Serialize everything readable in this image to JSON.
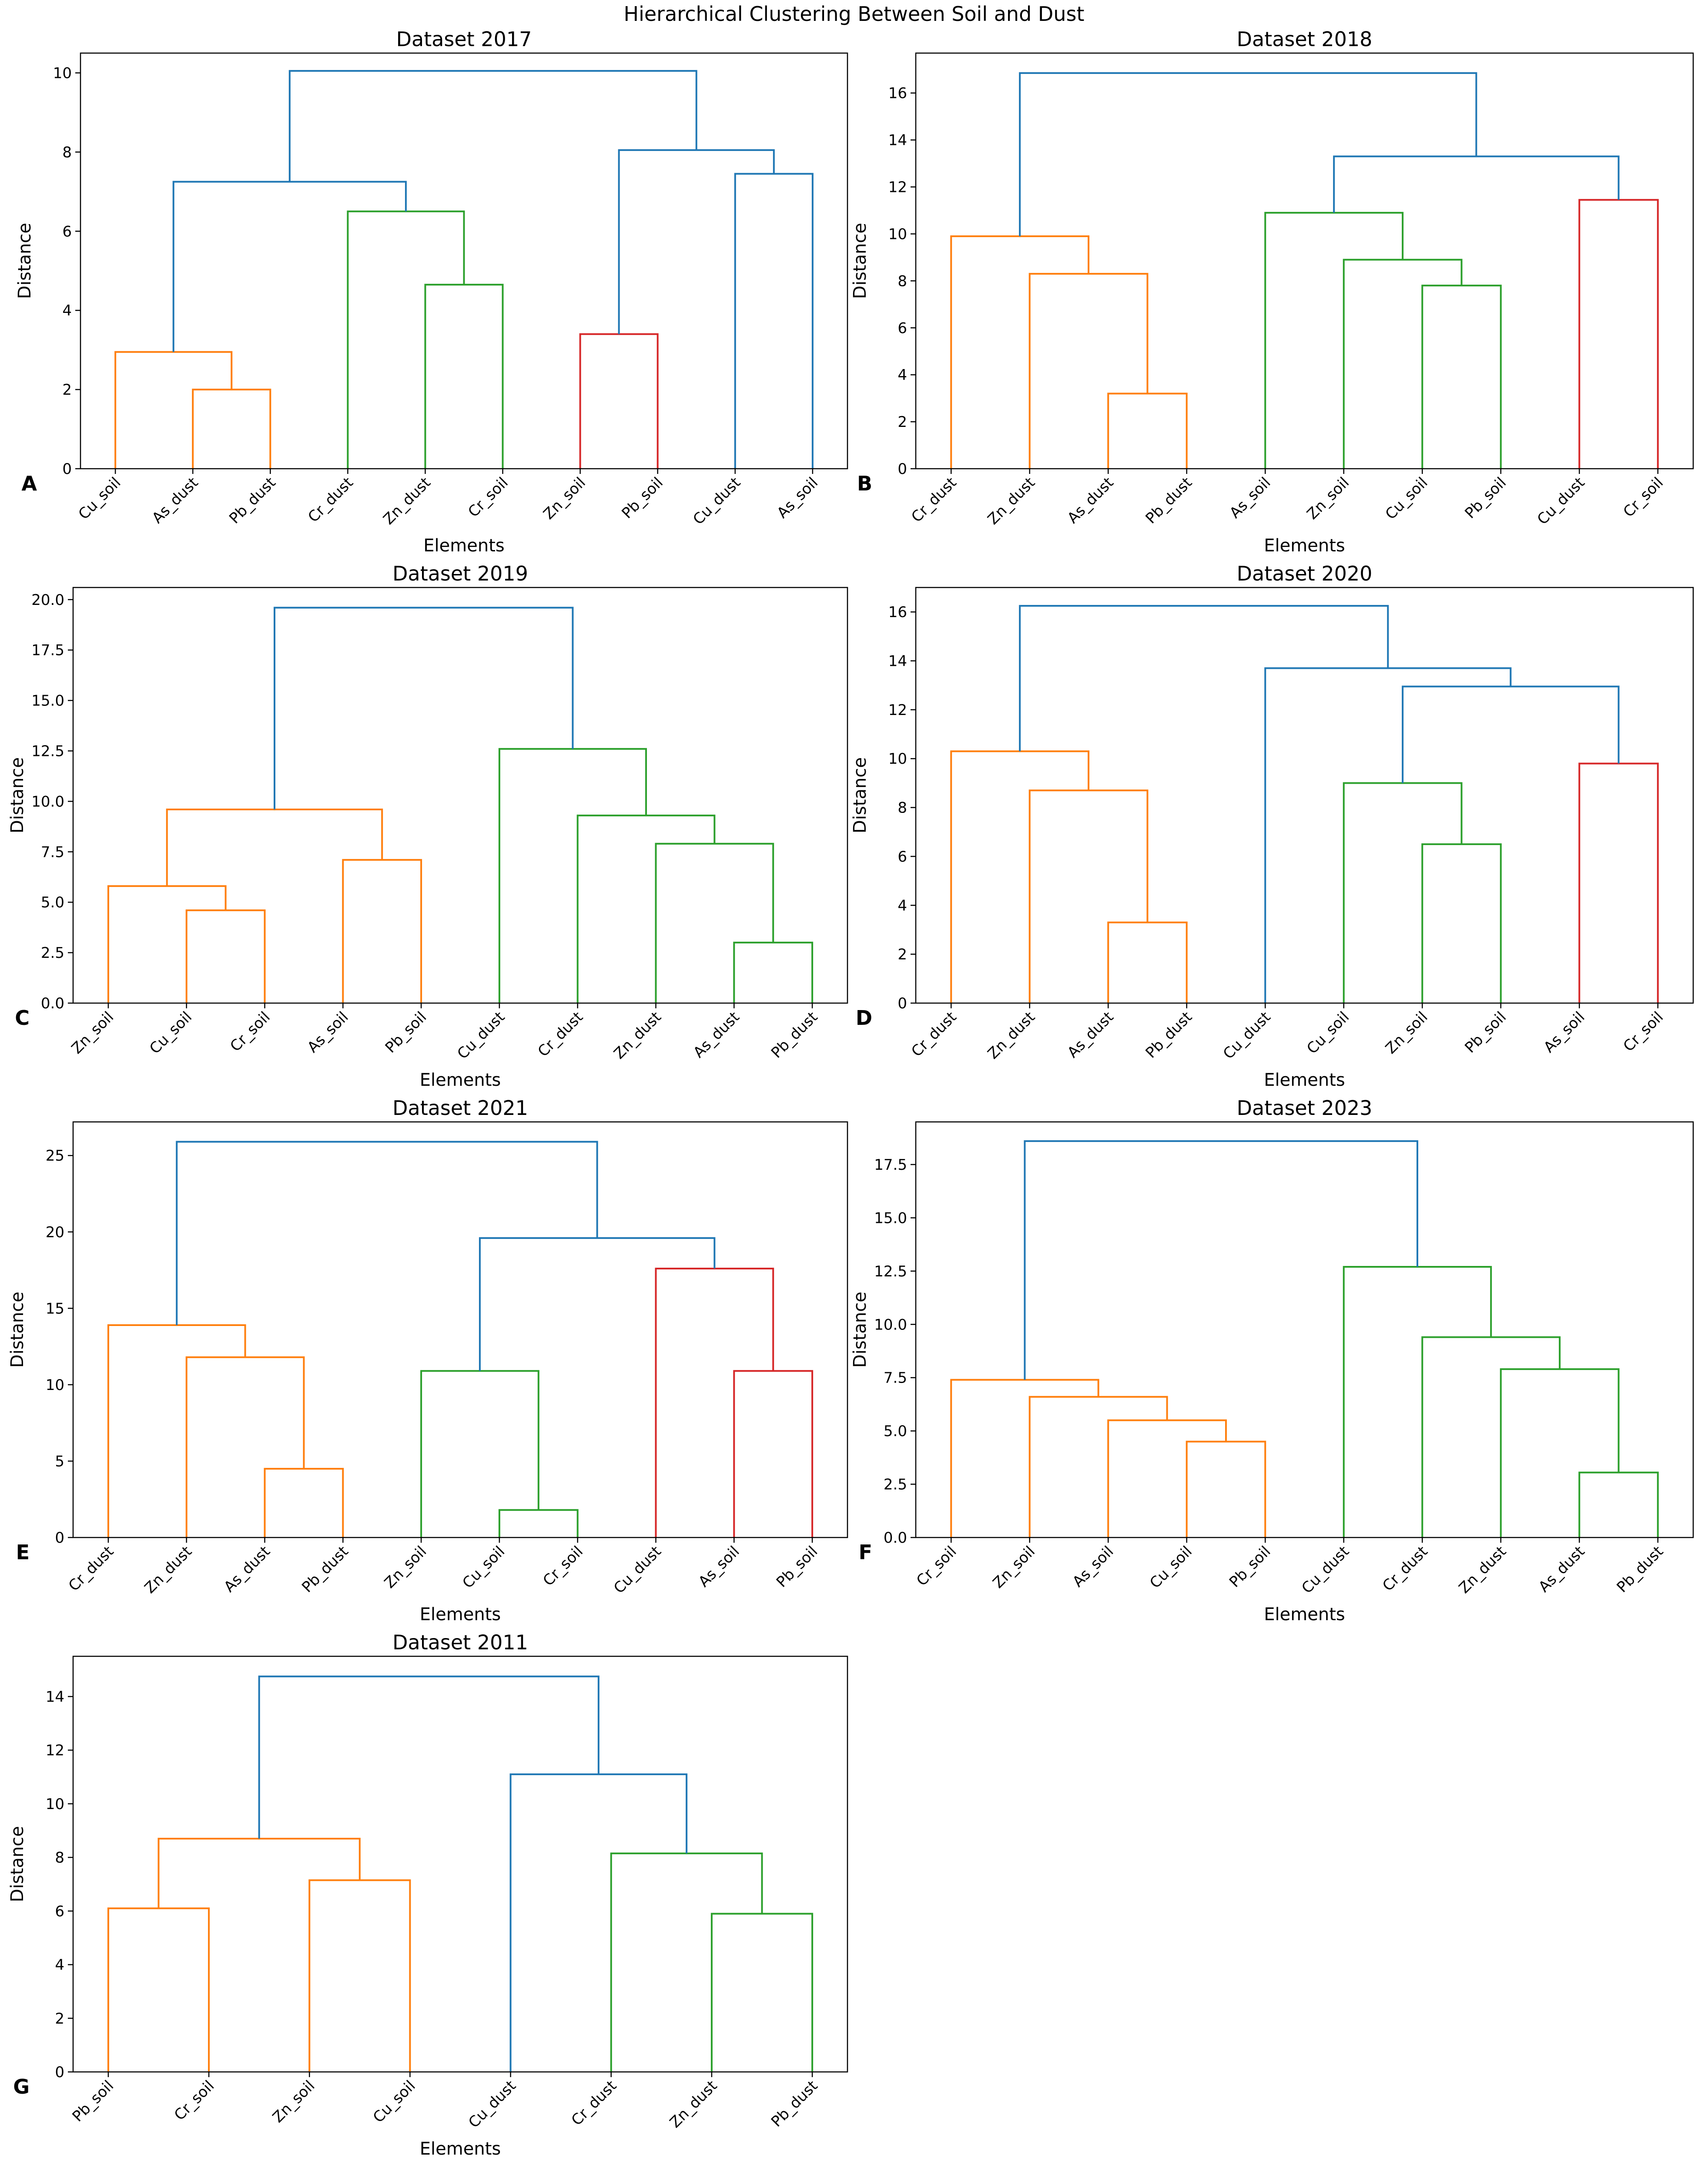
{
  "figure_title": "Hierarchical Clustering Between Soil and Dust",
  "colors": {
    "above_threshold": "#1f77b4",
    "cluster_1": "#ff7f0e",
    "cluster_2": "#2ca02c",
    "cluster_3": "#d62728",
    "axis": "#000000",
    "background": "#ffffff"
  },
  "chart_data": [
    {
      "type": "dendrogram",
      "panel_label": "A",
      "title": "Dataset 2017",
      "xlabel": "Elements",
      "ylabel": "Distance",
      "ylim": [
        0,
        10.5
      ],
      "yticks": [
        0,
        2,
        4,
        6,
        8,
        10
      ],
      "ytick_labels": [
        "0",
        "2",
        "4",
        "6",
        "8",
        "10"
      ],
      "leaves": [
        "Cu_soil",
        "As_dust",
        "Pb_dust",
        "Cr_dust",
        "Zn_dust",
        "Cr_soil",
        "Zn_soil",
        "Pb_soil",
        "Cu_dust",
        "As_soil"
      ],
      "links": [
        {
          "left": "L1",
          "right": "L2",
          "height": 2.0,
          "color": "cluster_1"
        },
        {
          "left": "L0",
          "right": "N0",
          "height": 2.95,
          "color": "cluster_1"
        },
        {
          "left": "L4",
          "right": "L5",
          "height": 4.65,
          "color": "cluster_2"
        },
        {
          "left": "L3",
          "right": "N2",
          "height": 6.5,
          "color": "cluster_2"
        },
        {
          "left": "N1",
          "right": "N3",
          "height": 7.25,
          "color": "above_threshold"
        },
        {
          "left": "L6",
          "right": "L7",
          "height": 3.4,
          "color": "cluster_3"
        },
        {
          "left": "L8",
          "right": "L9",
          "height": 7.45,
          "color": "above_threshold"
        },
        {
          "left": "N5",
          "right": "N6",
          "height": 8.05,
          "color": "above_threshold"
        },
        {
          "left": "N4",
          "right": "N7",
          "height": 10.05,
          "color": "above_threshold"
        }
      ]
    },
    {
      "type": "dendrogram",
      "panel_label": "B",
      "title": "Dataset 2018",
      "xlabel": "Elements",
      "ylabel": "Distance",
      "ylim": [
        0,
        17.7
      ],
      "yticks": [
        0,
        2,
        4,
        6,
        8,
        10,
        12,
        14,
        16
      ],
      "ytick_labels": [
        "0",
        "2",
        "4",
        "6",
        "8",
        "10",
        "12",
        "14",
        "16"
      ],
      "leaves": [
        "Cr_dust",
        "Zn_dust",
        "As_dust",
        "Pb_dust",
        "As_soil",
        "Zn_soil",
        "Cu_soil",
        "Pb_soil",
        "Cu_dust",
        "Cr_soil"
      ],
      "links": [
        {
          "left": "L2",
          "right": "L3",
          "height": 3.2,
          "color": "cluster_1"
        },
        {
          "left": "L1",
          "right": "N0",
          "height": 8.3,
          "color": "cluster_1"
        },
        {
          "left": "L0",
          "right": "N1",
          "height": 9.9,
          "color": "cluster_1"
        },
        {
          "left": "L6",
          "right": "L7",
          "height": 7.8,
          "color": "cluster_2"
        },
        {
          "left": "L5",
          "right": "N3",
          "height": 8.9,
          "color": "cluster_2"
        },
        {
          "left": "L4",
          "right": "N4",
          "height": 10.9,
          "color": "cluster_2"
        },
        {
          "left": "L8",
          "right": "L9",
          "height": 11.45,
          "color": "cluster_3"
        },
        {
          "left": "N5",
          "right": "N6",
          "height": 13.3,
          "color": "above_threshold"
        },
        {
          "left": "N2",
          "right": "N7",
          "height": 16.85,
          "color": "above_threshold"
        }
      ]
    },
    {
      "type": "dendrogram",
      "panel_label": "C",
      "title": "Dataset 2019",
      "xlabel": "Elements",
      "ylabel": "Distance",
      "ylim": [
        0,
        20.6
      ],
      "yticks": [
        0,
        2.5,
        5,
        7.5,
        10,
        12.5,
        15,
        17.5,
        20
      ],
      "ytick_labels": [
        "0.0",
        "2.5",
        "5.0",
        "7.5",
        "10.0",
        "12.5",
        "15.0",
        "17.5",
        "20.0"
      ],
      "leaves": [
        "Zn_soil",
        "Cu_soil",
        "Cr_soil",
        "As_soil",
        "Pb_soil",
        "Cu_dust",
        "Cr_dust",
        "Zn_dust",
        "As_dust",
        "Pb_dust"
      ],
      "links": [
        {
          "left": "L1",
          "right": "L2",
          "height": 4.6,
          "color": "cluster_1"
        },
        {
          "left": "L0",
          "right": "N0",
          "height": 5.8,
          "color": "cluster_1"
        },
        {
          "left": "L3",
          "right": "L4",
          "height": 7.1,
          "color": "cluster_1"
        },
        {
          "left": "N1",
          "right": "N2",
          "height": 9.6,
          "color": "cluster_1"
        },
        {
          "left": "L8",
          "right": "L9",
          "height": 3.0,
          "color": "cluster_2"
        },
        {
          "left": "L7",
          "right": "N4",
          "height": 7.9,
          "color": "cluster_2"
        },
        {
          "left": "L6",
          "right": "N5",
          "height": 9.3,
          "color": "cluster_2"
        },
        {
          "left": "L5",
          "right": "N6",
          "height": 12.6,
          "color": "cluster_2"
        },
        {
          "left": "N3",
          "right": "N7",
          "height": 19.6,
          "color": "above_threshold"
        }
      ]
    },
    {
      "type": "dendrogram",
      "panel_label": "D",
      "title": "Dataset 2020",
      "xlabel": "Elements",
      "ylabel": "Distance",
      "ylim": [
        0,
        17.0
      ],
      "yticks": [
        0,
        2,
        4,
        6,
        8,
        10,
        12,
        14,
        16
      ],
      "ytick_labels": [
        "0",
        "2",
        "4",
        "6",
        "8",
        "10",
        "12",
        "14",
        "16"
      ],
      "leaves": [
        "Cr_dust",
        "Zn_dust",
        "As_dust",
        "Pb_dust",
        "Cu_dust",
        "Cu_soil",
        "Zn_soil",
        "Pb_soil",
        "As_soil",
        "Cr_soil"
      ],
      "links": [
        {
          "left": "L2",
          "right": "L3",
          "height": 3.3,
          "color": "cluster_1"
        },
        {
          "left": "L1",
          "right": "N0",
          "height": 8.7,
          "color": "cluster_1"
        },
        {
          "left": "L0",
          "right": "N1",
          "height": 10.3,
          "color": "cluster_1"
        },
        {
          "left": "L6",
          "right": "L7",
          "height": 6.5,
          "color": "cluster_2"
        },
        {
          "left": "L5",
          "right": "N3",
          "height": 9.0,
          "color": "cluster_2"
        },
        {
          "left": "L8",
          "right": "L9",
          "height": 9.8,
          "color": "cluster_3"
        },
        {
          "left": "N4",
          "right": "N5",
          "height": 12.95,
          "color": "above_threshold"
        },
        {
          "left": "L4",
          "right": "N6",
          "height": 13.7,
          "color": "above_threshold"
        },
        {
          "left": "N2",
          "right": "N7",
          "height": 16.25,
          "color": "above_threshold"
        }
      ]
    },
    {
      "type": "dendrogram",
      "panel_label": "E",
      "title": "Dataset 2021",
      "xlabel": "Elements",
      "ylabel": "Distance",
      "ylim": [
        0,
        27.2
      ],
      "yticks": [
        0,
        5,
        10,
        15,
        20,
        25
      ],
      "ytick_labels": [
        "0",
        "5",
        "10",
        "15",
        "20",
        "25"
      ],
      "leaves": [
        "Cr_dust",
        "Zn_dust",
        "As_dust",
        "Pb_dust",
        "Zn_soil",
        "Cu_soil",
        "Cr_soil",
        "Cu_dust",
        "As_soil",
        "Pb_soil"
      ],
      "links": [
        {
          "left": "L2",
          "right": "L3",
          "height": 4.5,
          "color": "cluster_1"
        },
        {
          "left": "L1",
          "right": "N0",
          "height": 11.8,
          "color": "cluster_1"
        },
        {
          "left": "L0",
          "right": "N1",
          "height": 13.9,
          "color": "cluster_1"
        },
        {
          "left": "L5",
          "right": "L6",
          "height": 1.8,
          "color": "cluster_2"
        },
        {
          "left": "L4",
          "right": "N3",
          "height": 10.9,
          "color": "cluster_2"
        },
        {
          "left": "L8",
          "right": "L9",
          "height": 10.9,
          "color": "cluster_3"
        },
        {
          "left": "L7",
          "right": "N5",
          "height": 17.6,
          "color": "cluster_3"
        },
        {
          "left": "N4",
          "right": "N6",
          "height": 19.6,
          "color": "above_threshold"
        },
        {
          "left": "N2",
          "right": "N7",
          "height": 25.9,
          "color": "above_threshold"
        }
      ]
    },
    {
      "type": "dendrogram",
      "panel_label": "F",
      "title": "Dataset 2023",
      "xlabel": "Elements",
      "ylabel": "Distance",
      "ylim": [
        0,
        19.5
      ],
      "yticks": [
        0,
        2.5,
        5,
        7.5,
        10,
        12.5,
        15,
        17.5
      ],
      "ytick_labels": [
        "0.0",
        "2.5",
        "5.0",
        "7.5",
        "10.0",
        "12.5",
        "15.0",
        "17.5"
      ],
      "leaves": [
        "Cr_soil",
        "Zn_soil",
        "As_soil",
        "Cu_soil",
        "Pb_soil",
        "Cu_dust",
        "Cr_dust",
        "Zn_dust",
        "As_dust",
        "Pb_dust"
      ],
      "links": [
        {
          "left": "L3",
          "right": "L4",
          "height": 4.5,
          "color": "cluster_1"
        },
        {
          "left": "L2",
          "right": "N0",
          "height": 5.5,
          "color": "cluster_1"
        },
        {
          "left": "L1",
          "right": "N1",
          "height": 6.6,
          "color": "cluster_1"
        },
        {
          "left": "L0",
          "right": "N2",
          "height": 7.4,
          "color": "cluster_1"
        },
        {
          "left": "L8",
          "right": "L9",
          "height": 3.05,
          "color": "cluster_2"
        },
        {
          "left": "L7",
          "right": "N4",
          "height": 7.9,
          "color": "cluster_2"
        },
        {
          "left": "L6",
          "right": "N5",
          "height": 9.4,
          "color": "cluster_2"
        },
        {
          "left": "L5",
          "right": "N6",
          "height": 12.7,
          "color": "cluster_2"
        },
        {
          "left": "N3",
          "right": "N7",
          "height": 18.6,
          "color": "above_threshold"
        }
      ]
    },
    {
      "type": "dendrogram",
      "panel_label": "G",
      "title": "Dataset 2011",
      "xlabel": "Elements",
      "ylabel": "Distance",
      "ylim": [
        0,
        15.5
      ],
      "yticks": [
        0,
        2,
        4,
        6,
        8,
        10,
        12,
        14
      ],
      "ytick_labels": [
        "0",
        "2",
        "4",
        "6",
        "8",
        "10",
        "12",
        "14"
      ],
      "leaves": [
        "Pb_soil",
        "Cr_soil",
        "Zn_soil",
        "Cu_soil",
        "Cu_dust",
        "Cr_dust",
        "Zn_dust",
        "Pb_dust"
      ],
      "links": [
        {
          "left": "L0",
          "right": "L1",
          "height": 6.1,
          "color": "cluster_1"
        },
        {
          "left": "L2",
          "right": "L3",
          "height": 7.15,
          "color": "cluster_1"
        },
        {
          "left": "N0",
          "right": "N1",
          "height": 8.7,
          "color": "cluster_1"
        },
        {
          "left": "L6",
          "right": "L7",
          "height": 5.9,
          "color": "cluster_2"
        },
        {
          "left": "L5",
          "right": "N3",
          "height": 8.15,
          "color": "cluster_2"
        },
        {
          "left": "L4",
          "right": "N4",
          "height": 11.1,
          "color": "above_threshold"
        },
        {
          "left": "N2",
          "right": "N5",
          "height": 14.75,
          "color": "above_threshold"
        }
      ]
    }
  ]
}
